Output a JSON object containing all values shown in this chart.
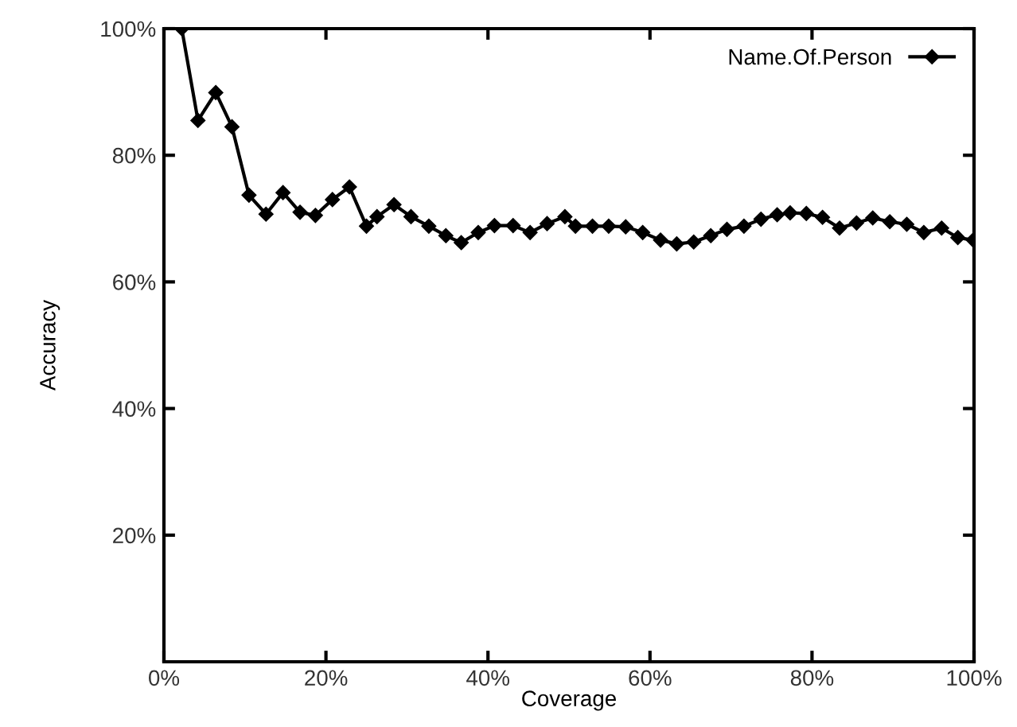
{
  "chart_data": {
    "type": "line",
    "xlabel": "Coverage",
    "ylabel": "Accuracy",
    "x": [
      2.2,
      4.2,
      6.4,
      8.4,
      10.5,
      12.6,
      14.7,
      16.8,
      18.7,
      20.8,
      22.9,
      25,
      26.3,
      28.4,
      30.5,
      32.7,
      34.8,
      36.7,
      38.8,
      40.8,
      43.1,
      45.2,
      47.3,
      49.5,
      50.8,
      52.9,
      54.9,
      57.0,
      59.1,
      61.3,
      63.3,
      65.4,
      67.5,
      69.5,
      71.6,
      73.7,
      75.7,
      77.3,
      79.3,
      81.3,
      83.4,
      85.5,
      87.5,
      89.6,
      91.7,
      93.8,
      96,
      98,
      99.9
    ],
    "series": [
      {
        "name": "Name.Of.Person",
        "color": "#000000",
        "values": [
          100,
          85.5,
          89.9,
          84.5,
          73.7,
          70.7,
          74.1,
          71,
          70.5,
          73,
          75,
          68.8,
          70.3,
          72.2,
          70.3,
          68.8,
          67.3,
          66.2,
          67.8,
          68.9,
          68.9,
          67.8,
          69.2,
          70.3,
          68.8,
          68.8,
          68.8,
          68.7,
          67.8,
          66.6,
          66,
          66.3,
          67.3,
          68.3,
          68.8,
          69.9,
          70.6,
          70.9,
          70.8,
          70.2,
          68.5,
          69.3,
          70.1,
          69.5,
          69.1,
          67.8,
          68.5,
          67,
          66.6
        ]
      }
    ],
    "xlim": [
      0,
      100
    ],
    "ylim": [
      0,
      100
    ],
    "xticks": [
      {
        "value": 0,
        "label": "0%"
      },
      {
        "value": 20,
        "label": "20%"
      },
      {
        "value": 40,
        "label": "40%"
      },
      {
        "value": 60,
        "label": "60%"
      },
      {
        "value": 80,
        "label": "80%"
      },
      {
        "value": 100,
        "label": "100%"
      }
    ],
    "yticks": [
      {
        "value": 20,
        "label": "20%"
      },
      {
        "value": 40,
        "label": "40%"
      },
      {
        "value": 60,
        "label": "60%"
      },
      {
        "value": 80,
        "label": "80%"
      },
      {
        "value": 100,
        "label": "100%"
      }
    ],
    "marker": "diamond",
    "line_style": "solid",
    "legend": "top right",
    "grid": false
  }
}
